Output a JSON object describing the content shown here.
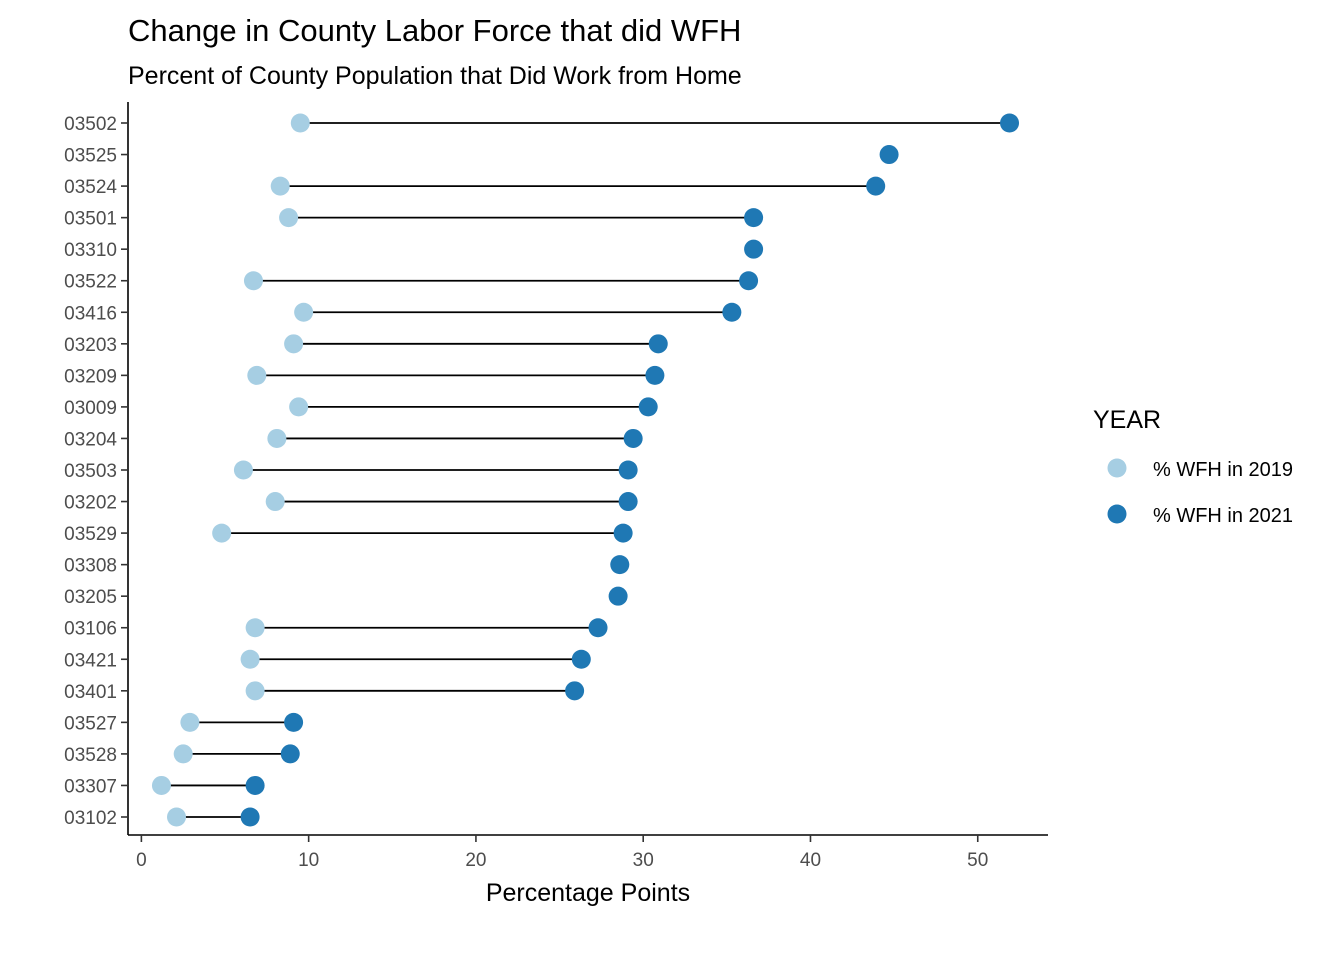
{
  "chart_data": {
    "type": "scatter",
    "subtype": "dumbbell",
    "title": "Change in County Labor Force that did WFH",
    "subtitle": "Percent of County Population that Did Work from Home",
    "xlabel": "Percentage Points",
    "ylabel": "",
    "xlim": [
      -0.8,
      54.2
    ],
    "xticks": [
      0,
      10,
      20,
      30,
      40,
      50
    ],
    "categories": [
      "03502",
      "03525",
      "03524",
      "03501",
      "03310",
      "03522",
      "03416",
      "03203",
      "03209",
      "03009",
      "03204",
      "03503",
      "03202",
      "03529",
      "03308",
      "03205",
      "03106",
      "03421",
      "03401",
      "03527",
      "03528",
      "03307",
      "03102"
    ],
    "legend": {
      "title": "YEAR",
      "position": "right",
      "entries": [
        {
          "label": "% WFH in 2019",
          "color": "#a6cee3"
        },
        {
          "label": "% WFH in 2021",
          "color": "#1f78b4"
        }
      ]
    },
    "series": [
      {
        "name": "% WFH in 2019",
        "color": "#a6cee3",
        "values": [
          9.5,
          null,
          8.3,
          8.8,
          null,
          6.7,
          9.7,
          9.1,
          6.9,
          9.4,
          8.1,
          6.1,
          8.0,
          4.8,
          null,
          null,
          6.8,
          6.5,
          6.8,
          2.9,
          2.5,
          1.2,
          2.1
        ]
      },
      {
        "name": "% WFH in 2021",
        "color": "#1f78b4",
        "values": [
          51.9,
          44.7,
          43.9,
          36.6,
          36.6,
          36.3,
          35.3,
          30.9,
          30.7,
          30.3,
          29.4,
          29.1,
          29.1,
          28.8,
          28.6,
          28.5,
          27.3,
          26.3,
          25.9,
          9.1,
          8.9,
          6.8,
          6.5
        ]
      }
    ],
    "connector_color": "#000000",
    "grid": false
  }
}
